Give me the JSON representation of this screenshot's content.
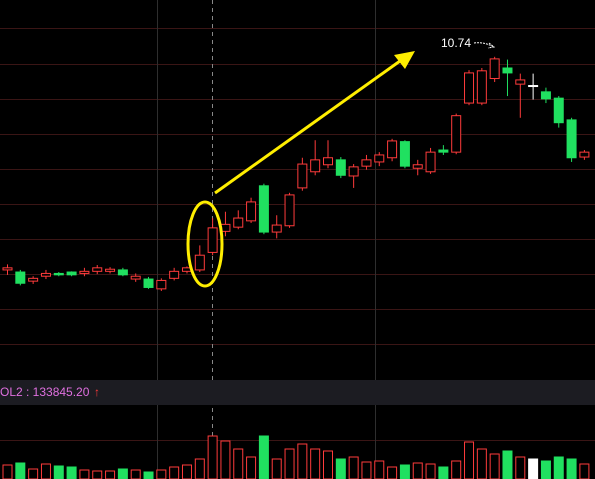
{
  "chart_data": {
    "type": "candlestick",
    "up_color": "#ff3b3b",
    "down_color": "#20e060",
    "flat_color": "#ffffff",
    "ylim": [
      6.13,
      11.55
    ],
    "open": [
      7.7,
      7.67,
      7.54,
      7.61,
      7.65,
      7.67,
      7.65,
      7.68,
      7.68,
      7.7,
      7.57,
      7.57,
      7.43,
      7.58,
      7.68,
      7.7,
      7.95,
      8.25,
      8.31,
      8.4,
      8.9,
      8.24,
      8.33,
      8.87,
      9.1,
      9.2,
      9.27,
      9.04,
      9.18,
      9.24,
      9.3,
      9.53,
      9.15,
      9.1,
      9.41,
      9.38,
      10.08,
      10.08,
      10.43,
      10.58,
      10.35,
      10.33,
      10.24,
      10.15,
      9.84,
      9.31
    ],
    "high": [
      7.78,
      7.7,
      7.61,
      7.7,
      7.67,
      7.68,
      7.73,
      7.77,
      7.74,
      7.73,
      7.65,
      7.6,
      7.58,
      7.73,
      7.75,
      8.05,
      8.44,
      8.53,
      8.55,
      8.73,
      8.93,
      8.48,
      8.8,
      9.3,
      9.55,
      9.55,
      9.31,
      9.21,
      9.34,
      9.38,
      9.57,
      9.55,
      9.27,
      9.44,
      9.48,
      9.93,
      10.55,
      10.58,
      10.74,
      10.7,
      10.5,
      10.5,
      10.3,
      10.18,
      9.87,
      9.41
    ],
    "low": [
      7.63,
      7.48,
      7.5,
      7.57,
      7.61,
      7.61,
      7.61,
      7.64,
      7.65,
      7.61,
      7.53,
      7.43,
      7.4,
      7.55,
      7.65,
      7.67,
      7.91,
      8.18,
      8.28,
      8.37,
      8.21,
      8.15,
      8.3,
      8.83,
      9.05,
      9.15,
      9.01,
      8.87,
      9.13,
      9.18,
      9.25,
      9.15,
      9.05,
      9.07,
      9.34,
      9.35,
      10.05,
      10.05,
      10.38,
      10.18,
      9.87,
      10.13,
      10.08,
      9.73,
      9.24,
      9.27
    ],
    "close": [
      7.73,
      7.51,
      7.58,
      7.65,
      7.63,
      7.63,
      7.68,
      7.73,
      7.71,
      7.63,
      7.61,
      7.45,
      7.55,
      7.68,
      7.73,
      7.91,
      8.3,
      8.35,
      8.44,
      8.67,
      8.24,
      8.34,
      8.77,
      9.21,
      9.27,
      9.3,
      9.05,
      9.17,
      9.27,
      9.34,
      9.54,
      9.18,
      9.2,
      9.38,
      9.38,
      9.9,
      10.51,
      10.54,
      10.71,
      10.51,
      10.41,
      10.33,
      10.14,
      9.8,
      9.3,
      9.38
    ],
    "high_label": "10.74",
    "volume_label": "OL2 : 133845.20",
    "volume_trend": "↑",
    "volume": {
      "ylim": [
        0,
        74
      ],
      "values": [
        14,
        16,
        10,
        15,
        13,
        12,
        9,
        8,
        8,
        10,
        9,
        7,
        9,
        12,
        14,
        20,
        43,
        38,
        30,
        22,
        43,
        20,
        30,
        35,
        30,
        28,
        20,
        22,
        17,
        18,
        12,
        14,
        16,
        15,
        12,
        18,
        37,
        30,
        25,
        28,
        22,
        20,
        18,
        22,
        20,
        15
      ]
    }
  }
}
